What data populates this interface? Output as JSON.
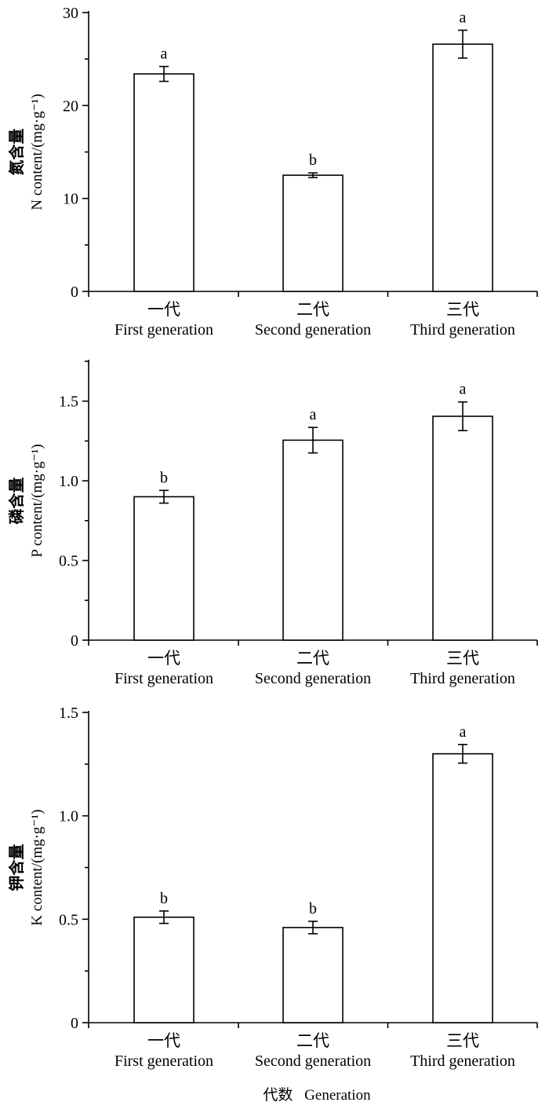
{
  "chart_data": [
    {
      "type": "bar",
      "ylabel_cn": "氮含量",
      "ylabel_en": "N content/(mg·g⁻¹)",
      "categories_cn": [
        "一代",
        "二代",
        "三代"
      ],
      "categories_en": [
        "First generation",
        "Second generation",
        "Third generation"
      ],
      "values": [
        23.4,
        12.5,
        26.6
      ],
      "errors": [
        0.8,
        0.25,
        1.5
      ],
      "letters": [
        "a",
        "b",
        "a"
      ],
      "ylim": [
        0,
        30
      ],
      "ticks": [
        0,
        10,
        20,
        30
      ],
      "tick_labels": [
        "0",
        "10",
        "20",
        "30"
      ],
      "minor_step": 5
    },
    {
      "type": "bar",
      "ylabel_cn": "磷含量",
      "ylabel_en": "P content/(mg·g⁻¹)",
      "categories_cn": [
        "一代",
        "二代",
        "三代"
      ],
      "categories_en": [
        "First generation",
        "Second generation",
        "Third generation"
      ],
      "values": [
        0.9,
        1.255,
        1.405
      ],
      "errors": [
        0.04,
        0.08,
        0.09
      ],
      "letters": [
        "b",
        "a",
        "a"
      ],
      "ylim": [
        0,
        1.75
      ],
      "ticks": [
        0,
        0.5,
        1.0,
        1.5
      ],
      "tick_labels": [
        "0",
        "0.5",
        "1.0",
        "1.5"
      ],
      "minor_step": 0.25
    },
    {
      "type": "bar",
      "ylabel_cn": "钾含量",
      "ylabel_en": "K content/(mg·g⁻¹)",
      "categories_cn": [
        "一代",
        "二代",
        "三代"
      ],
      "categories_en": [
        "First generation",
        "Second generation",
        "Third generation"
      ],
      "values": [
        0.51,
        0.46,
        1.3
      ],
      "errors": [
        0.03,
        0.03,
        0.045
      ],
      "letters": [
        "b",
        "b",
        "a"
      ],
      "ylim": [
        0,
        1.5
      ],
      "ticks": [
        0,
        0.5,
        1.0,
        1.5
      ],
      "tick_labels": [
        "0",
        "0.5",
        "1.0",
        "1.5"
      ],
      "minor_step": 0.25
    }
  ],
  "xlabel_cn": "代数",
  "xlabel_en": "Generation"
}
